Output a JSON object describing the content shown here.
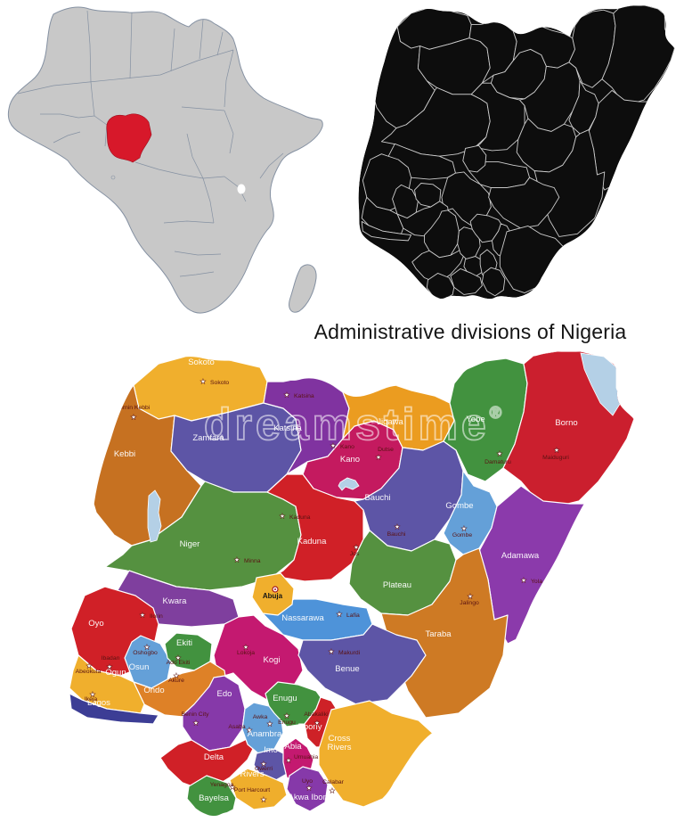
{
  "title": "Administrative divisions of Nigeria",
  "watermark": {
    "text": "dreamstime",
    "symbol": "®"
  },
  "africa_map": {
    "land_color": "#c8c8c8",
    "border_color": "#8591a2",
    "highlight_color": "#d7182a",
    "highlighted_country": "Nigeria"
  },
  "black_map": {
    "fill_color": "#0d0d0d",
    "border_color": "#cccccc"
  },
  "nigeria_map": {
    "border_color": "#ffffff",
    "state_label_color": "#ffffff",
    "city_label_color": "#5a1212",
    "lake_color": "#b4d0e6",
    "capital": {
      "name": "Abuja"
    },
    "fct": {
      "id": "fct",
      "color": "#f0af2d"
    },
    "states": [
      {
        "id": "sokoto",
        "name": "Sokoto",
        "capital": "Sokoto",
        "color": "#f0af2d"
      },
      {
        "id": "kebbi",
        "name": "Kebbi",
        "capital": "Birnin Kebbi",
        "color": "#c67121"
      },
      {
        "id": "zamfara",
        "name": "Zamfara",
        "capital": null,
        "color": "#5d55a6"
      },
      {
        "id": "katsina",
        "name": "Katsina",
        "capital": "Katsina",
        "color": "#8033a0"
      },
      {
        "id": "kano",
        "name": "Kano",
        "capital": "Kano",
        "color": "#c41a5f"
      },
      {
        "id": "jigawa",
        "name": "Jigawa",
        "capital": "Dutse",
        "color": "#eb9c20"
      },
      {
        "id": "yobe",
        "name": "Yobe",
        "capital": "Damaturu",
        "color": "#42923f"
      },
      {
        "id": "borno",
        "name": "Borno",
        "capital": "Maiduguri",
        "color": "#cb1f2e"
      },
      {
        "id": "niger",
        "name": "Niger",
        "capital": "Minna",
        "color": "#559140"
      },
      {
        "id": "kaduna",
        "name": "Kaduna",
        "capital": "Kaduna",
        "color": "#d02027"
      },
      {
        "id": "bauchi",
        "name": "Bauchi",
        "capital": "Bauchi",
        "color": "#5d55a6"
      },
      {
        "id": "gombe",
        "name": "Gombe",
        "capital": "Gombe",
        "color": "#64a0d8"
      },
      {
        "id": "adamawa",
        "name": "Adamawa",
        "capital": "Yola",
        "color": "#8b3aab"
      },
      {
        "id": "plateau",
        "name": "Plateau",
        "capital": "Jos",
        "color": "#559140"
      },
      {
        "id": "taraba",
        "name": "Taraba",
        "capital": "Jalingo",
        "color": "#ce7a24"
      },
      {
        "id": "kwara",
        "name": "Kwara",
        "capital": "Ilorin",
        "color": "#7f3f9e"
      },
      {
        "id": "nassarawa",
        "name": "Nassarawa",
        "capital": "Lafia",
        "color": "#4e93d9"
      },
      {
        "id": "kogi",
        "name": "Kogi",
        "capital": "Lokoja",
        "color": "#c41970"
      },
      {
        "id": "benue",
        "name": "Benue",
        "capital": "Makurdi",
        "color": "#5d55a6"
      },
      {
        "id": "oyo",
        "name": "Oyo",
        "capital": "Ibadan",
        "color": "#d02027"
      },
      {
        "id": "osun",
        "name": "Osun",
        "capital": "Oshogbo",
        "color": "#64a0d8"
      },
      {
        "id": "ekiti",
        "name": "Ekiti",
        "capital": "Ado Ekiti",
        "color": "#42923f"
      },
      {
        "id": "ondo",
        "name": "Ondo",
        "capital": "Akure",
        "color": "#de8127"
      },
      {
        "id": "ogun",
        "name": "Ogun",
        "capital": "Abeokuta",
        "color": "#f0af2d"
      },
      {
        "id": "lagos",
        "name": "Lagos",
        "capital": "Ikeja",
        "color": "#3c3d95"
      },
      {
        "id": "edo",
        "name": "Edo",
        "capital": "Benin City",
        "color": "#8639a9"
      },
      {
        "id": "delta",
        "name": "Delta",
        "capital": "Asaba",
        "color": "#d02027"
      },
      {
        "id": "anambra",
        "name": "Anambra",
        "capital": "Awka",
        "color": "#64a0d8"
      },
      {
        "id": "enugu",
        "name": "Enugu",
        "capital": "Enugu",
        "color": "#42923f"
      },
      {
        "id": "ebony",
        "name": "Ebony",
        "capital": "Abakaliki",
        "color": "#ce2127"
      },
      {
        "id": "imo",
        "name": "Imo",
        "capital": "Owerri",
        "color": "#5d55a6"
      },
      {
        "id": "abia",
        "name": "Abia",
        "capital": "Umuahia",
        "color": "#c41970"
      },
      {
        "id": "cross-rivers",
        "name": "Cross Rivers",
        "capital": "Calabar",
        "color": "#f0af2d"
      },
      {
        "id": "akwa-ibom",
        "name": "Akwa Ibom",
        "capital": "Uyo",
        "color": "#8639a9"
      },
      {
        "id": "rivers",
        "name": "Rivers",
        "capital": "Port Harcourt",
        "color": "#efae2c"
      },
      {
        "id": "bayelsa",
        "name": "Bayelsa",
        "capital": "Yenagoa",
        "color": "#42923f"
      }
    ]
  }
}
